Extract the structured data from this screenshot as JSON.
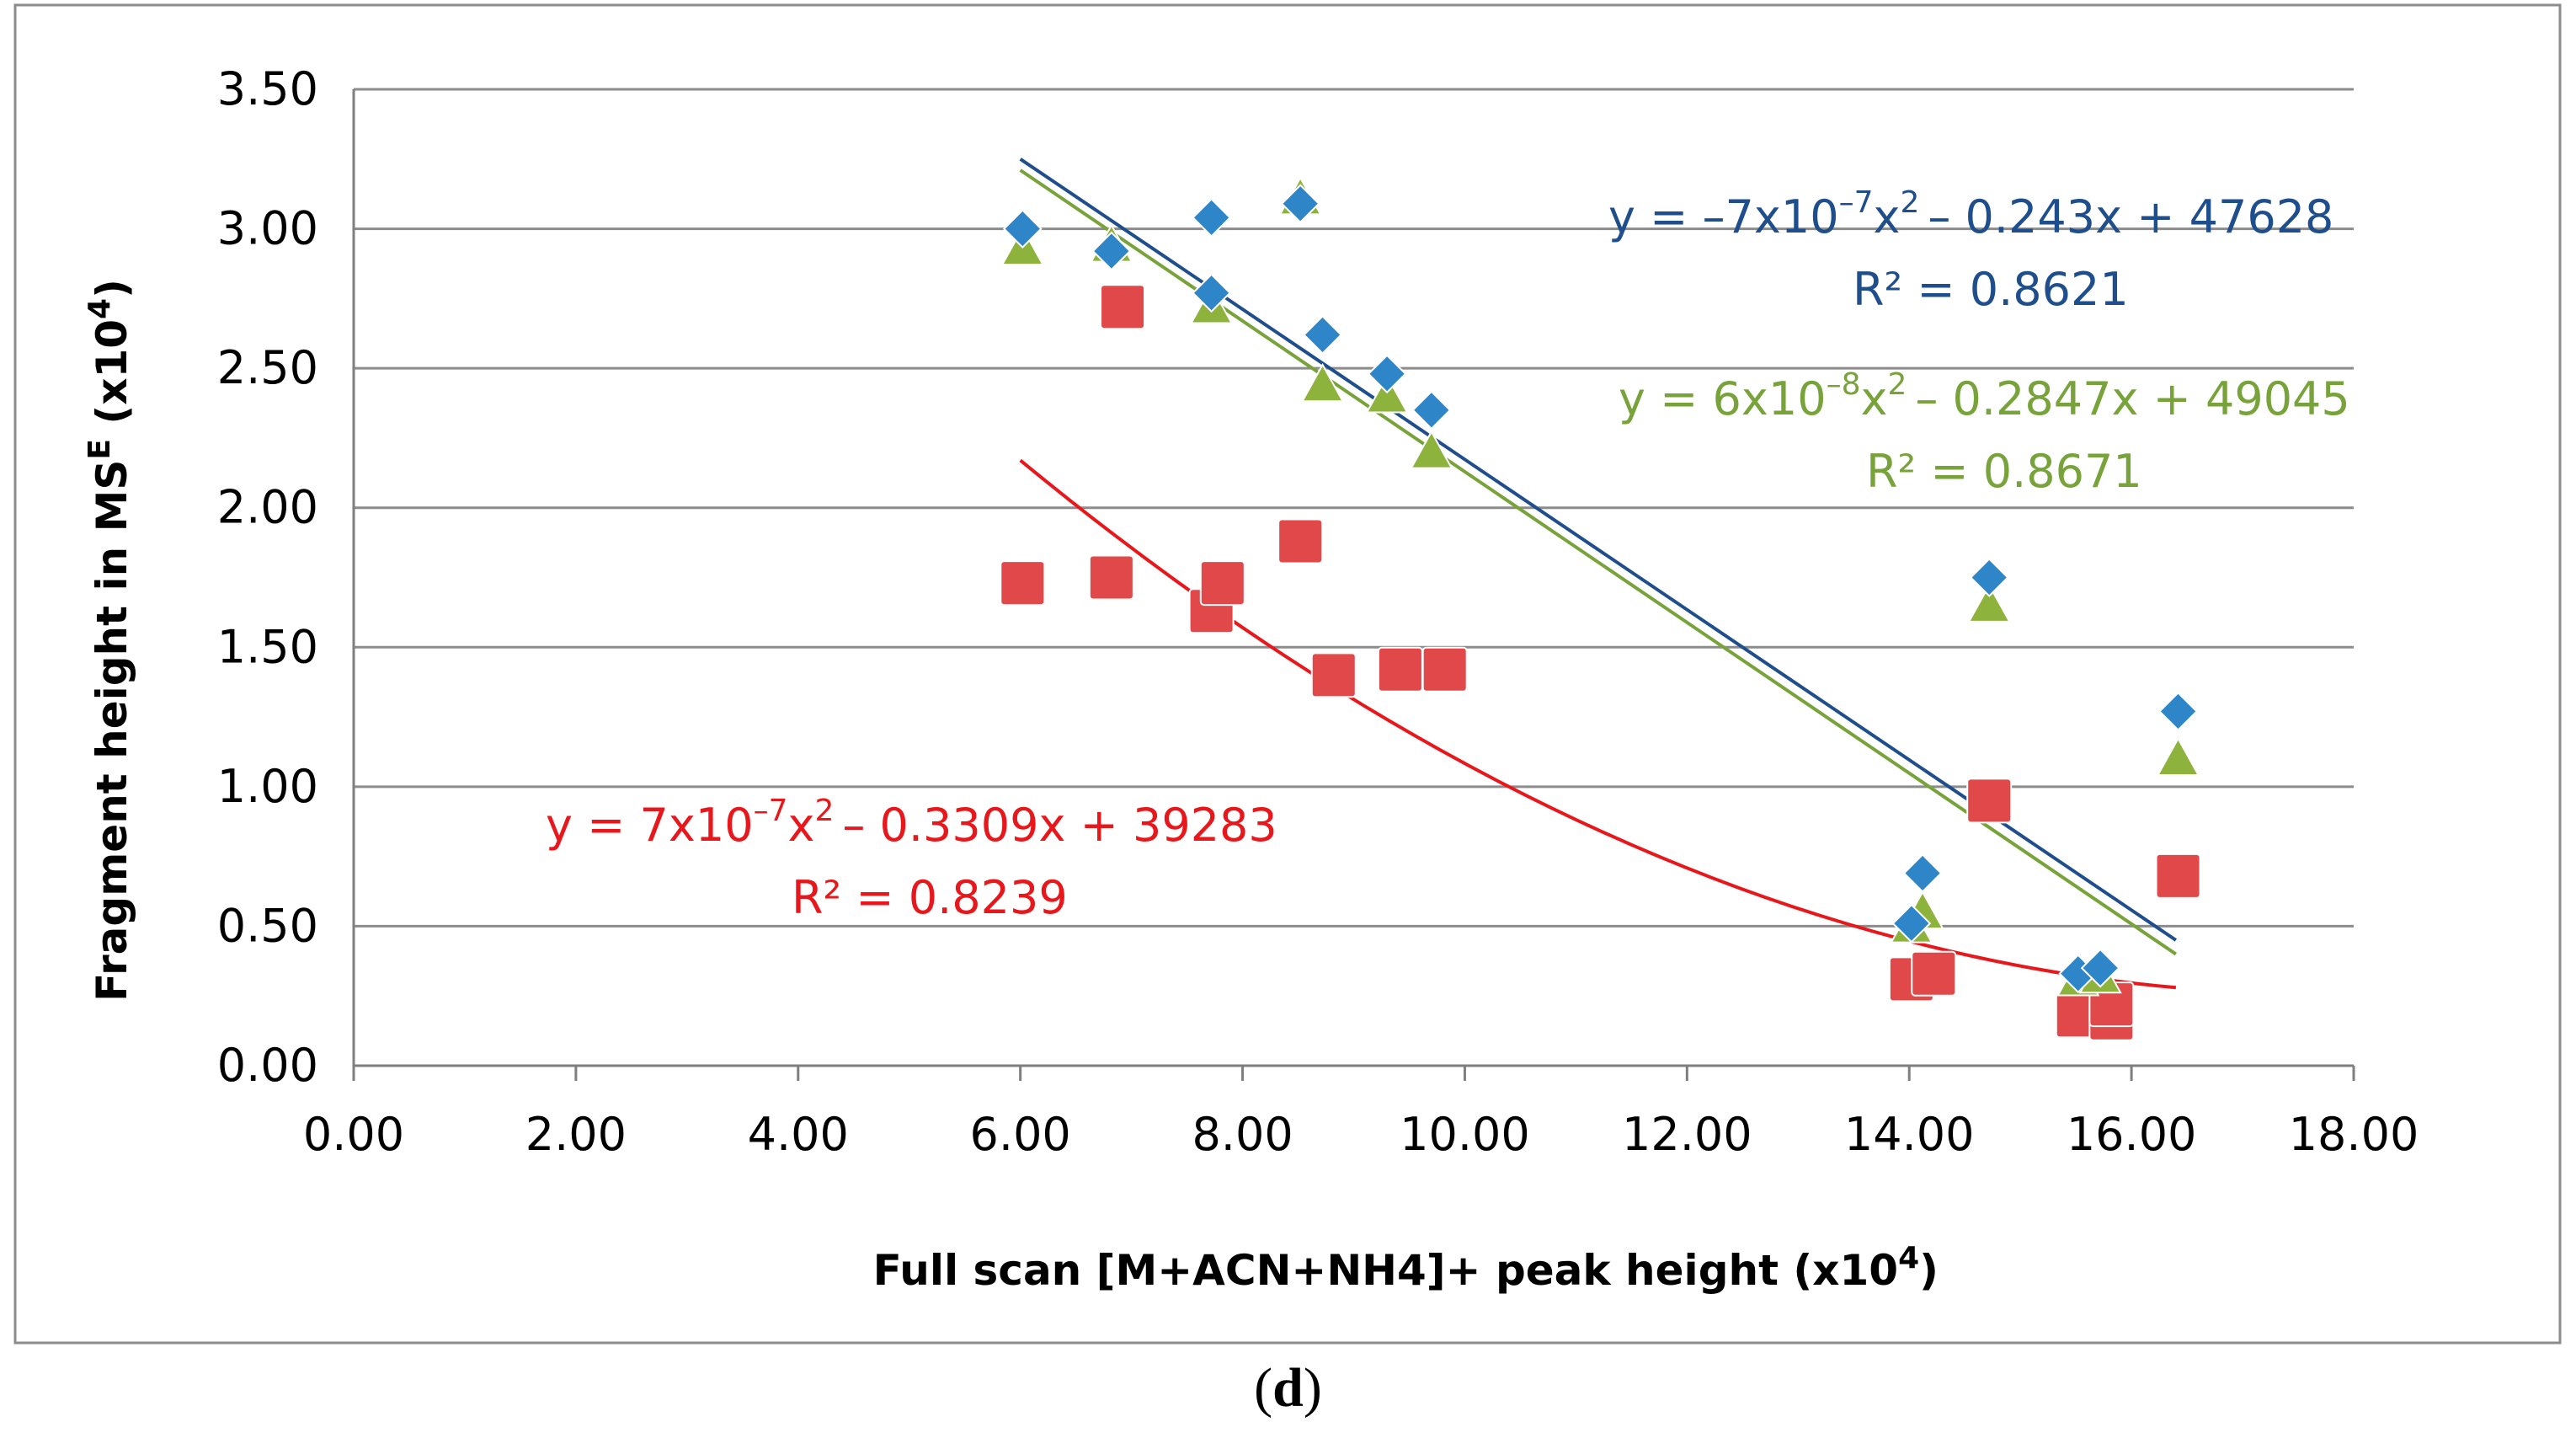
{
  "chart_data": {
    "type": "scatter",
    "title": "",
    "xlabel": "Full scan [M+ACN+NH4]+ peak height (x10",
    "xlabel_sup": "4",
    "xlabel_end": ")",
    "ylabel": "Fragment height in MS",
    "ylabel_sup_e": "E",
    "ylabel_mid": " (x10",
    "ylabel_sup": "4",
    "ylabel_end": ")",
    "xlim": [
      0,
      18
    ],
    "ylim": [
      0,
      3.5
    ],
    "x_ticks": [
      "0.00",
      "2.00",
      "4.00",
      "6.00",
      "8.00",
      "10.00",
      "12.00",
      "14.00",
      "16.00",
      "18.00"
    ],
    "y_ticks": [
      "0.00",
      "0.50",
      "1.00",
      "1.50",
      "2.00",
      "2.50",
      "3.00",
      "3.50"
    ],
    "grid": "horizontal",
    "series": [
      {
        "name": "blue",
        "marker": "diamond",
        "color": "#2E86C8",
        "line_color": "#1F4E8C",
        "points": [
          [
            6.02,
            3.0
          ],
          [
            6.82,
            2.92
          ],
          [
            7.72,
            3.04
          ],
          [
            7.72,
            2.77
          ],
          [
            8.52,
            3.09
          ],
          [
            8.72,
            2.62
          ],
          [
            9.3,
            2.48
          ],
          [
            9.7,
            2.35
          ],
          [
            14.02,
            0.51
          ],
          [
            14.12,
            0.69
          ],
          [
            14.72,
            1.75
          ],
          [
            15.52,
            0.33
          ],
          [
            15.72,
            0.35
          ],
          [
            16.42,
            1.27
          ]
        ],
        "trend": {
          "type": "poly2",
          "x_range": [
            6.0,
            16.4
          ],
          "y_start": 3.25,
          "y_end": 0.45
        },
        "equation_parts": [
          "y = –7x10",
          "–7",
          "x",
          "2",
          "– 0.243x + 47628"
        ],
        "r2": "R² = 0.8621"
      },
      {
        "name": "green",
        "marker": "triangle",
        "color": "#8DB33C",
        "line_color": "#77A33A",
        "points": [
          [
            6.02,
            2.93
          ],
          [
            6.82,
            2.94
          ],
          [
            7.72,
            2.72
          ],
          [
            8.52,
            3.11
          ],
          [
            8.72,
            2.44
          ],
          [
            9.3,
            2.4
          ],
          [
            9.7,
            2.2
          ],
          [
            14.02,
            0.5
          ],
          [
            14.12,
            0.55
          ],
          [
            14.72,
            1.65
          ],
          [
            15.52,
            0.31
          ],
          [
            15.72,
            0.32
          ],
          [
            16.42,
            1.1
          ]
        ],
        "trend": {
          "type": "poly2",
          "x_range": [
            6.0,
            16.4
          ],
          "y_start": 3.21,
          "y_end": 0.4
        },
        "equation_parts": [
          "y = 6x10",
          "–8",
          "x",
          "2",
          "– 0.2847x + 49045"
        ],
        "r2": "R² = 0.8671"
      },
      {
        "name": "red",
        "marker": "square",
        "color": "#E0484A",
        "line_color": "#E8171B",
        "points": [
          [
            6.02,
            1.73
          ],
          [
            6.82,
            1.75
          ],
          [
            6.92,
            2.72
          ],
          [
            7.72,
            1.63
          ],
          [
            7.82,
            1.73
          ],
          [
            8.52,
            1.88
          ],
          [
            8.82,
            1.4
          ],
          [
            9.42,
            1.42
          ],
          [
            9.82,
            1.42
          ],
          [
            14.02,
            0.31
          ],
          [
            14.22,
            0.33
          ],
          [
            14.72,
            0.95
          ],
          [
            15.52,
            0.18
          ],
          [
            15.82,
            0.17
          ],
          [
            15.82,
            0.22
          ],
          [
            16.42,
            0.68
          ]
        ],
        "trend": {
          "type": "poly2",
          "x_range": [
            6.0,
            16.4
          ],
          "y_start": 2.17,
          "y_end": 0.28
        },
        "equation_parts": [
          "y = 7x10",
          "–7",
          "x",
          "2",
          "– 0.3309x + 39283"
        ],
        "r2": "R² = 0.8239"
      }
    ]
  },
  "caption": {
    "open": "(",
    "letter": "d",
    "close": ")"
  }
}
